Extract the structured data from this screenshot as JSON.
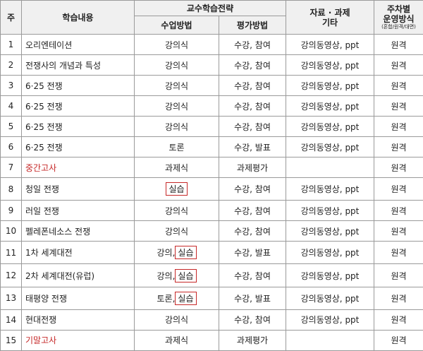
{
  "header": {
    "week": "주",
    "content": "학습내용",
    "strategy": "교수학습전략",
    "method": "수업방법",
    "evaluation": "평가방법",
    "materials": [
      "자료 · 과제",
      "기타"
    ],
    "mode": [
      "주차별",
      "운영방식",
      "(혼합/원격/대면)"
    ]
  },
  "table": {
    "highlight_color": "#c62828",
    "rows": [
      {
        "week": "1",
        "content": "오리엔테이션",
        "method": [
          {
            "text": "강의식"
          }
        ],
        "evaluation": "수강, 참여",
        "materials": "강의동영상, ppt",
        "mode": "원격"
      },
      {
        "week": "2",
        "content": "전쟁사의 개념과 특성",
        "method": [
          {
            "text": "강의식"
          }
        ],
        "evaluation": "수강, 참여",
        "materials": "강의동영상, ppt",
        "mode": "원격"
      },
      {
        "week": "3",
        "content": "6·25 전쟁",
        "method": [
          {
            "text": "강의식"
          }
        ],
        "evaluation": "수강, 참여",
        "materials": "강의동영상, ppt",
        "mode": "원격"
      },
      {
        "week": "4",
        "content": "6·25 전쟁",
        "method": [
          {
            "text": "강의식"
          }
        ],
        "evaluation": "수강, 참여",
        "materials": "강의동영상, ppt",
        "mode": "원격"
      },
      {
        "week": "5",
        "content": "6·25 전쟁",
        "method": [
          {
            "text": "강의식"
          }
        ],
        "evaluation": "수강, 참여",
        "materials": "강의동영상, ppt",
        "mode": "원격"
      },
      {
        "week": "6",
        "content": "6·25 전쟁",
        "method": [
          {
            "text": "토론"
          }
        ],
        "evaluation": "수강, 발표",
        "materials": "강의동영상, ppt",
        "mode": "원격"
      },
      {
        "week": "7",
        "content": "중간고사",
        "highlight": true,
        "method": [
          {
            "text": "과제식"
          }
        ],
        "evaluation": "과제평가",
        "materials": null,
        "mode": "원격"
      },
      {
        "week": "8",
        "content": "청일 전쟁",
        "method": [
          {
            "text": "실습",
            "boxed": true
          }
        ],
        "evaluation": "수강, 참여",
        "materials": "강의동영상, ppt",
        "mode": "원격"
      },
      {
        "week": "9",
        "content": "러일 전쟁",
        "method": [
          {
            "text": "강의식"
          }
        ],
        "evaluation": "수강, 참여",
        "materials": "강의동영상, ppt",
        "mode": "원격"
      },
      {
        "week": "10",
        "content": "펠레폰네소스 전쟁",
        "method": [
          {
            "text": "강의식"
          }
        ],
        "evaluation": "수강, 참여",
        "materials": "강의동영상, ppt",
        "mode": "원격"
      },
      {
        "week": "11",
        "content": "1차 세계대전",
        "method": [
          {
            "text": "강의,"
          },
          {
            "text": "실습",
            "boxed": true
          }
        ],
        "evaluation": "수강, 발표",
        "materials": "강의동영상, ppt",
        "mode": "원격"
      },
      {
        "week": "12",
        "content": "2차 세계대전(유럽)",
        "method": [
          {
            "text": "강의,"
          },
          {
            "text": "실습",
            "boxed": true
          }
        ],
        "evaluation": "수강, 참여",
        "materials": "강의동영상, ppt",
        "mode": "원격"
      },
      {
        "week": "13",
        "content": "태평양 전쟁",
        "method": [
          {
            "text": "토론,"
          },
          {
            "text": "실습",
            "boxed": true
          }
        ],
        "evaluation": "수강, 발표",
        "materials": "강의동영상, ppt",
        "mode": "원격"
      },
      {
        "week": "14",
        "content": "현대전쟁",
        "method": [
          {
            "text": "강의식"
          }
        ],
        "evaluation": "수강, 참여",
        "materials": "강의동영상, ppt",
        "mode": "원격"
      },
      {
        "week": "15",
        "content": "기말고사",
        "highlight": true,
        "method": [
          {
            "text": "과제식"
          }
        ],
        "evaluation": "과제평가",
        "materials": null,
        "mode": "원격"
      }
    ]
  }
}
